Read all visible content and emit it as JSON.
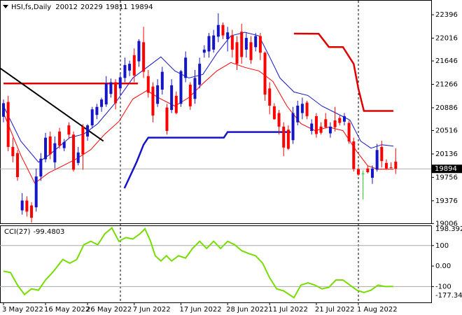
{
  "chart_data": [
    {
      "type": "candlestick",
      "title": "HSI,fs,Daily",
      "categories": [
        "3 May 2022",
        null,
        null,
        null,
        null,
        null,
        null,
        null,
        null,
        "16 May 2022",
        null,
        null,
        null,
        null,
        null,
        null,
        null,
        null,
        "26 May 2022",
        null,
        null,
        null,
        null,
        null,
        null,
        null,
        null,
        null,
        "7 Jun 2022",
        null,
        null,
        null,
        null,
        null,
        null,
        null,
        null,
        null,
        "17 Jun 2022",
        null,
        null,
        null,
        null,
        null,
        null,
        null,
        null,
        null,
        "28 Jun 2022",
        null,
        null,
        null,
        null,
        null,
        null,
        null,
        null,
        "11 Jul 2022",
        null,
        null,
        null,
        null,
        null,
        null,
        null,
        null,
        null,
        "21 Jul 2022",
        null,
        null,
        null,
        null,
        null,
        null,
        null,
        null,
        "1 Aug 2022",
        null,
        null,
        null,
        null,
        null,
        null,
        null,
        null
      ],
      "open": [
        20740,
        20980,
        20250,
        20150,
        19220,
        19380,
        19300,
        19270,
        19770,
        20050,
        20420,
        20000,
        20500,
        20230,
        20600,
        20450,
        19990,
        20580,
        20420,
        20600,
        20770,
        20900,
        20940,
        21110,
        21300,
        21200,
        21370,
        21490,
        21740,
        21640,
        21950,
        21400,
        21230,
        20950,
        21180,
        20890,
        20850,
        21080,
        20950,
        21370,
        21260,
        21030,
        21260,
        21780,
        21800,
        21830,
        22040,
        22230,
        22000,
        22060,
        21950,
        22120,
        21830,
        21950,
        21870,
        22050,
        21780,
        21200,
        20910,
        20800,
        20580,
        20530,
        20360,
        20650,
        20800,
        20970,
        20510,
        20750,
        20580,
        20700,
        20470,
        20680,
        20720,
        20660,
        20640,
        20340,
        19890,
        19820,
        19900,
        19750,
        19880,
        20250,
        19990,
        19920,
        20012
      ],
      "high": [
        21020,
        21080,
        20400,
        20200,
        19500,
        19450,
        19350,
        19900,
        20150,
        20480,
        20500,
        20420,
        20560,
        20380,
        20650,
        20500,
        20250,
        20620,
        20620,
        20900,
        20950,
        21050,
        21400,
        21360,
        21350,
        21450,
        21700,
        21650,
        21850,
        22000,
        22200,
        21500,
        21300,
        21350,
        21550,
        20950,
        21350,
        21150,
        21500,
        21800,
        21300,
        21500,
        21700,
        21900,
        22100,
        22150,
        22420,
        22270,
        22200,
        22150,
        22050,
        22250,
        22100,
        22050,
        22100,
        22100,
        21800,
        21300,
        20960,
        20850,
        20650,
        20600,
        20900,
        21000,
        21050,
        21000,
        20700,
        20800,
        20650,
        20800,
        20650,
        20900,
        20760,
        20800,
        20680,
        20400,
        19920,
        19870,
        19950,
        19950,
        20300,
        20350,
        20050,
        20000,
        20229
      ],
      "low": [
        20650,
        20180,
        20000,
        19700,
        19150,
        19120,
        19020,
        19200,
        19700,
        20000,
        20050,
        19900,
        20220,
        20180,
        20380,
        19850,
        19950,
        19880,
        20350,
        20550,
        20700,
        20820,
        20900,
        21050,
        20860,
        21100,
        21300,
        21400,
        21300,
        21550,
        21370,
        21050,
        20650,
        20900,
        21100,
        20450,
        20800,
        20780,
        20900,
        21300,
        20850,
        20950,
        21200,
        21700,
        21700,
        21780,
        21950,
        22000,
        21800,
        21700,
        21500,
        21600,
        21700,
        21600,
        21800,
        21660,
        21000,
        20780,
        20690,
        20450,
        20100,
        20200,
        20300,
        20600,
        20700,
        20700,
        20450,
        20400,
        20450,
        20560,
        20400,
        20500,
        20600,
        20600,
        20300,
        19850,
        19780,
        19400,
        19820,
        19650,
        19850,
        19920,
        19880,
        19900,
        19811
      ],
      "close": [
        20960,
        20250,
        20100,
        19760,
        19380,
        19200,
        19100,
        19770,
        20060,
        20400,
        20130,
        20310,
        20270,
        20330,
        20450,
        19880,
        20160,
        20130,
        20600,
        20860,
        20900,
        21020,
        21280,
        21300,
        20960,
        21380,
        21580,
        21600,
        21410,
        21970,
        21470,
        21130,
        20760,
        21250,
        21470,
        20510,
        21250,
        20800,
        21480,
        21700,
        20910,
        21370,
        21600,
        21830,
        22050,
        22060,
        22230,
        22060,
        22110,
        21830,
        21600,
        21710,
        22020,
        21660,
        22050,
        21780,
        21100,
        20920,
        20700,
        20580,
        20240,
        20220,
        20800,
        20920,
        20950,
        20750,
        20630,
        20460,
        20480,
        20570,
        20580,
        20570,
        20640,
        20750,
        20340,
        19890,
        19800,
        19820,
        19840,
        19900,
        20200,
        20020,
        19900,
        19910,
        19894
      ],
      "up_color": "#1515c8",
      "down_color": "#ff0000",
      "doji_color": "#22cc22",
      "overlays": [
        {
          "color": "#1515c8",
          "width": 1,
          "x": [
            0,
            3.7,
            7.5,
            9.7,
            14.2,
            17.2,
            20.2,
            24,
            27.7,
            30.7,
            33.7,
            36.7,
            39.7,
            42.7,
            45.7,
            48.7,
            51.7,
            54.7,
            57,
            59.2,
            62.2,
            65.2,
            68.2,
            71.2,
            74.2,
            76.5,
            78.7,
            81,
            83.5
          ],
          "values": [
            20914,
            20344,
            20002,
            20116,
            20401,
            20458,
            20629,
            20971,
            21370,
            21541,
            21712,
            21484,
            21370,
            21427,
            21769,
            22054,
            22111,
            22054,
            21712,
            21370,
            21142,
            21085,
            20914,
            20800,
            20686,
            20344,
            20230,
            20287,
            20264
          ]
        },
        {
          "color": "#ff0000",
          "width": 1,
          "x": [
            0,
            3.7,
            6.7,
            9.7,
            12.7,
            15.7,
            18.7,
            21.7,
            24.7,
            27.7,
            30.7,
            33.7,
            36.7,
            39.7,
            42.7,
            45.7,
            48.7,
            51.7,
            54.7,
            57.7,
            60.7,
            63.7,
            66.7,
            69.7,
            72.7,
            75.7,
            78,
            80.2,
            83.5
          ],
          "values": [
            20800,
            20116,
            19660,
            19831,
            19945,
            20059,
            20207,
            20458,
            20663,
            21028,
            21165,
            21028,
            20914,
            21051,
            21279,
            21484,
            21621,
            21541,
            21484,
            21313,
            20914,
            20629,
            20515,
            20572,
            20515,
            20173,
            19945,
            19888,
            19888
          ]
        },
        {
          "color": "#e00000",
          "width": 2.5,
          "x": [
            0,
            28.8,
            45,
            62.2,
            67.5,
            69.7,
            72.7,
            75,
            76,
            77.2,
            83.5
          ],
          "values": [
            21280,
            21280,
            null,
            22090,
            22088,
            21872,
            21872,
            21598,
            21199,
            20834,
            20834
          ]
        },
        {
          "color": "#1515c8",
          "width": 2.5,
          "x": [
            25.9,
            28.5,
            30,
            31,
            47.2,
            48,
            61.5
          ],
          "values": [
            19580,
            20002,
            20287,
            20401,
            20401,
            20492,
            20492
          ]
        },
        {
          "color": "#000000",
          "width": 2,
          "x": [
            -0.75,
            21.4
          ],
          "values": [
            21530,
            20344
          ]
        }
      ],
      "xlim": [
        -0.75,
        91.6
      ],
      "ylim": [
        18999,
        22624
      ],
      "yticks": [
        22396,
        22016,
        21646,
        21266,
        20886,
        20516,
        20136,
        19756,
        19376,
        19006
      ]
    },
    {
      "type": "line",
      "title": "CCI(27)",
      "series": [
        {
          "color": "#77dd00",
          "x": [
            0,
            1.5,
            3,
            4.5,
            6,
            7.5,
            9,
            10.5,
            12.7,
            14.2,
            15.7,
            17.2,
            18.7,
            20.2,
            21.7,
            23.2,
            24.7,
            26.2,
            27.7,
            29.2,
            30.3,
            31.5,
            32.5,
            33.7,
            34.9,
            36,
            37.5,
            39,
            40.5,
            42,
            43.5,
            45,
            46.5,
            48,
            49.5,
            51,
            52.5,
            54,
            55.5,
            57,
            58.5,
            60,
            62.2,
            63.7,
            65.2,
            66.7,
            68.2,
            69.7,
            71.2,
            72.7,
            74.2,
            75.7,
            77.2,
            78.7,
            80.2,
            81.7,
            83.5
          ],
          "values": [
            -25,
            -32,
            -93,
            -139,
            -111,
            -118,
            -68,
            -32,
            32,
            14,
            32,
            104,
            121,
            104,
            157,
            186,
            121,
            139,
            132,
            157,
            182,
            121,
            50,
            25,
            50,
            25,
            50,
            39,
            86,
            121,
            86,
            121,
            86,
            121,
            104,
            75,
            61,
            50,
            14,
            -57,
            -111,
            -121,
            -154,
            -93,
            -82,
            -93,
            -111,
            -104,
            -68,
            -68,
            -93,
            -118,
            -129,
            -118,
            -93,
            -100,
            -99.4803
          ]
        }
      ],
      "xlim": [
        -0.75,
        91.6
      ],
      "ylim": [
        -177.341,
        198.3924
      ],
      "yticks": [
        100,
        {
          "value": 0,
          "label": "0.00"
        },
        -100
      ]
    }
  ]
}
